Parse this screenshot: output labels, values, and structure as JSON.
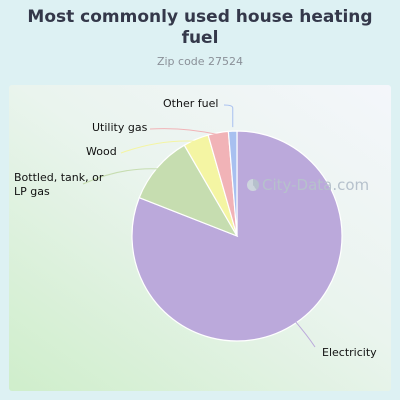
{
  "chart_data": {
    "type": "pie",
    "title": "Most commonly used house heating fuel",
    "subtitle": "Zip code 27524",
    "slices": [
      {
        "label": "Electricity",
        "value": 80.3,
        "color": "#bba9db"
      },
      {
        "label": "Bottled, tank, or LP gas",
        "value": 10.6,
        "color": "#c6ddb0"
      },
      {
        "label": "Wood",
        "value": 3.9,
        "color": "#f4f5a3"
      },
      {
        "label": "Utility gas",
        "value": 3.1,
        "color": "#f1b3b7"
      },
      {
        "label": "Other fuel",
        "value": 1.3,
        "color": "#a8c0f0"
      }
    ]
  },
  "watermark": "City-Data.com"
}
